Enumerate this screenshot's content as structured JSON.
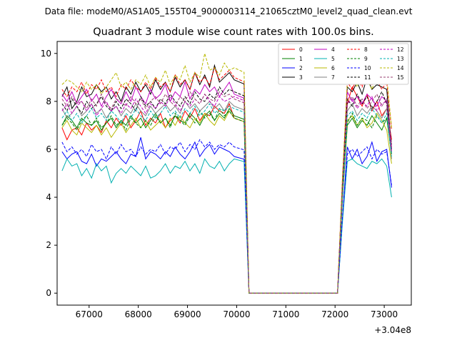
{
  "chart_data": {
    "type": "line",
    "suptitle": "Data file: modeM0/AS1A05_155T04_9000003114_21065cztM0_level2_quad_clean.evt",
    "title": "Quadrant 3 module wise count rates with 100.0s bins.",
    "xlabel": "",
    "ylabel": "",
    "x_offset_label": "+3.04e8",
    "xlim": [
      66350,
      73550
    ],
    "ylim": [
      -0.5,
      10.5
    ],
    "xticks": [
      67000,
      68000,
      69000,
      70000,
      71000,
      72000,
      73000
    ],
    "yticks": [
      0,
      2,
      4,
      6,
      8,
      10
    ],
    "xticklabels": [
      "67000",
      "68000",
      "69000",
      "70000",
      "71000",
      "72000",
      "73000"
    ],
    "yticklabels": [
      "0",
      "2",
      "4",
      "6",
      "8",
      "10"
    ],
    "legend_position": "top-right",
    "gap": {
      "start": 70150,
      "end": 72150,
      "start_ramp": 70250,
      "end_ramp": 72050,
      "floor": 0.0
    },
    "segment_x": {
      "seg1_start": 66450,
      "seg1_step": 100,
      "seg1_count": 36,
      "seg2_start": 72250,
      "seg2_step": 100,
      "seg2_count": 10
    },
    "series": [
      {
        "name": "0",
        "color": "#ff0000",
        "dash": "solid",
        "base": 7.2,
        "seg2base": 8.4,
        "values": [
          6.9,
          6.4,
          6.8,
          6.9,
          6.6,
          7.1,
          6.8,
          7.0,
          6.7,
          7.2,
          6.9,
          7.3,
          7.0,
          7.4,
          6.9,
          7.2,
          7.6,
          7.0,
          7.3,
          7.1,
          7.5,
          6.9,
          7.2,
          7.4,
          7.1,
          7.6,
          7.3,
          7.7,
          7.2,
          7.5,
          7.4,
          7.8,
          7.6,
          7.5,
          7.9,
          7.3
        ],
        "values2": [
          7.9,
          8.6,
          8.2,
          7.8,
          8.3,
          7.6,
          8.0,
          7.4,
          7.7,
          6.4
        ]
      },
      {
        "name": "1",
        "color": "#008000",
        "dash": "solid",
        "base": 7.2,
        "seg2base": 7.2,
        "values": [
          7.0,
          7.4,
          7.2,
          6.9,
          7.3,
          7.1,
          7.0,
          7.2,
          6.8,
          7.1,
          7.3,
          6.9,
          7.2,
          7.0,
          7.4,
          7.1,
          7.3,
          6.9,
          7.2,
          7.5,
          7.1,
          7.3,
          7.0,
          7.4,
          7.2,
          7.1,
          7.5,
          7.3,
          7.0,
          7.4,
          7.6,
          7.2,
          7.5,
          7.3,
          7.7,
          7.4
        ],
        "values2": [
          7.0,
          7.3,
          6.9,
          7.2,
          7.0,
          7.4,
          7.1,
          6.8,
          7.3,
          5.8
        ]
      },
      {
        "name": "2",
        "color": "#0000ff",
        "dash": "solid",
        "base": 5.6,
        "seg2base": 5.6,
        "values": [
          5.9,
          5.6,
          5.8,
          5.9,
          5.5,
          5.4,
          5.8,
          5.3,
          5.6,
          5.5,
          5.7,
          5.9,
          5.6,
          5.4,
          5.8,
          5.7,
          6.5,
          5.6,
          5.9,
          5.8,
          5.6,
          5.9,
          5.7,
          6.1,
          5.8,
          5.6,
          5.9,
          6.3,
          5.7,
          6.0,
          6.2,
          5.8,
          6.1,
          6.0,
          5.9,
          5.7
        ],
        "values2": [
          6.1,
          5.6,
          6.0,
          5.4,
          5.7,
          6.3,
          5.5,
          5.9,
          6.0,
          4.4
        ]
      },
      {
        "name": "3",
        "color": "#000000",
        "dash": "solid",
        "base": 8.2,
        "seg2base": 8.5,
        "values": [
          8.2,
          8.6,
          7.7,
          8.0,
          8.6,
          8.2,
          8.3,
          8.7,
          8.4,
          8.6,
          8.1,
          8.4,
          8.0,
          8.6,
          8.3,
          8.8,
          8.4,
          8.7,
          8.3,
          8.9,
          8.5,
          8.8,
          8.4,
          9.0,
          8.6,
          8.9,
          8.5,
          9.2,
          8.7,
          9.1,
          8.6,
          9.5,
          8.8,
          9.0,
          9.2,
          8.9
        ],
        "values2": [
          8.6,
          8.4,
          8.8,
          8.3,
          9.0,
          8.5,
          8.7,
          8.6,
          8.5,
          6.0
        ]
      },
      {
        "name": "4",
        "color": "#c000c0",
        "dash": "solid",
        "base": 8.0,
        "seg2base": 8.1,
        "values": [
          8.3,
          8.0,
          8.4,
          7.9,
          8.2,
          8.5,
          8.0,
          8.3,
          7.8,
          8.2,
          8.5,
          8.1,
          7.9,
          8.4,
          8.0,
          8.6,
          8.2,
          7.9,
          8.5,
          8.1,
          8.3,
          8.7,
          8.0,
          8.4,
          8.2,
          8.8,
          8.1,
          8.5,
          8.3,
          8.7,
          8.4,
          8.6,
          8.2,
          8.5,
          8.8,
          8.3
        ],
        "values2": [
          8.4,
          8.0,
          8.2,
          7.9,
          8.3,
          8.1,
          7.8,
          8.2,
          8.0,
          5.9
        ]
      },
      {
        "name": "5",
        "color": "#00b0b0",
        "dash": "solid",
        "base": 5.0,
        "seg2base": 5.4,
        "values": [
          5.1,
          5.6,
          5.3,
          5.4,
          4.9,
          5.2,
          4.8,
          5.4,
          5.1,
          5.3,
          4.6,
          5.0,
          5.2,
          5.0,
          5.3,
          5.1,
          4.9,
          5.3,
          4.8,
          4.9,
          5.1,
          5.4,
          5.0,
          5.3,
          5.2,
          5.5,
          5.1,
          5.4,
          5.0,
          5.6,
          5.3,
          5.2,
          5.5,
          5.1,
          5.4,
          5.6
        ],
        "values2": [
          5.5,
          5.6,
          5.4,
          5.3,
          5.2,
          5.5,
          5.4,
          5.6,
          5.3,
          4.0
        ]
      },
      {
        "name": "6",
        "color": "#b8b800",
        "dash": "solid",
        "base": 7.0,
        "seg2base": 7.3,
        "values": [
          6.9,
          7.2,
          6.8,
          6.6,
          7.1,
          6.9,
          6.7,
          7.0,
          6.6,
          6.9,
          6.5,
          6.8,
          7.1,
          6.7,
          7.0,
          7.3,
          6.9,
          7.2,
          6.8,
          7.0,
          7.2,
          6.9,
          7.3,
          7.0,
          7.4,
          7.1,
          6.9,
          7.3,
          7.1,
          7.5,
          7.2,
          7.0,
          7.4,
          7.2,
          7.6,
          7.3
        ],
        "values2": [
          7.2,
          7.4,
          7.0,
          7.3,
          6.9,
          7.1,
          7.5,
          7.2,
          6.8,
          5.4
        ]
      },
      {
        "name": "7",
        "color": "#808080",
        "dash": "solid",
        "base": 7.6,
        "seg2base": 7.6,
        "values": [
          7.7,
          7.3,
          7.5,
          7.8,
          7.4,
          7.6,
          7.9,
          7.5,
          7.7,
          7.3,
          7.6,
          7.8,
          7.4,
          7.7,
          7.5,
          7.9,
          7.6,
          7.4,
          7.8,
          7.5,
          7.7,
          7.9,
          7.6,
          7.8,
          7.5,
          8.0,
          7.7,
          7.9,
          7.6,
          7.8,
          8.0,
          7.7,
          7.9,
          7.6,
          8.0,
          7.8
        ],
        "values2": [
          7.6,
          7.9,
          7.4,
          7.7,
          7.5,
          7.8,
          7.6,
          7.3,
          7.7,
          5.6
        ]
      },
      {
        "name": "8",
        "color": "#ff0000",
        "dash": "dashed",
        "base": 8.3,
        "seg2base": 8.7,
        "values": [
          8.5,
          8.2,
          8.6,
          8.4,
          8.8,
          8.3,
          8.7,
          8.5,
          8.9,
          8.4,
          8.6,
          8.2,
          8.7,
          8.5,
          8.9,
          8.6,
          8.4,
          8.8,
          8.5,
          9.0,
          8.6,
          8.8,
          8.4,
          9.1,
          8.7,
          8.9,
          8.5,
          9.2,
          8.8,
          9.0,
          8.7,
          9.4,
          8.9,
          9.1,
          9.3,
          9.0
        ],
        "values2": [
          8.8,
          8.5,
          9.0,
          8.6,
          9.2,
          8.7,
          8.9,
          8.5,
          8.8,
          6.8
        ]
      },
      {
        "name": "9",
        "color": "#008000",
        "dash": "dashed",
        "base": 7.2,
        "seg2base": 7.3,
        "values": [
          7.0,
          7.3,
          7.1,
          6.8,
          7.2,
          7.4,
          7.0,
          7.3,
          6.9,
          7.1,
          7.4,
          7.0,
          7.2,
          6.8,
          7.3,
          7.1,
          6.9,
          7.2,
          7.0,
          7.4,
          7.1,
          7.3,
          6.9,
          7.5,
          7.2,
          7.0,
          7.4,
          7.1,
          7.6,
          7.3,
          7.5,
          7.2,
          7.7,
          7.4,
          7.6,
          7.3
        ],
        "values2": [
          7.1,
          7.5,
          7.0,
          7.3,
          7.2,
          6.9,
          7.4,
          7.1,
          7.3,
          5.8
        ]
      },
      {
        "name": "10",
        "color": "#0000ff",
        "dash": "dashed",
        "base": 5.9,
        "seg2base": 5.8,
        "values": [
          6.3,
          5.9,
          6.1,
          5.8,
          6.0,
          5.7,
          6.2,
          5.9,
          6.0,
          5.6,
          6.1,
          5.8,
          6.2,
          5.9,
          6.0,
          5.7,
          6.1,
          5.8,
          6.0,
          5.9,
          6.2,
          5.8,
          6.1,
          6.0,
          6.3,
          5.9,
          6.2,
          6.0,
          6.4,
          6.1,
          6.3,
          6.0,
          6.2,
          6.1,
          6.3,
          6.1
        ],
        "values2": [
          5.8,
          6.0,
          5.7,
          5.9,
          6.1,
          5.6,
          6.0,
          5.8,
          5.9,
          4.5
        ]
      },
      {
        "name": "11",
        "color": "#000000",
        "dash": "dashed",
        "base": 7.8,
        "seg2base": 8.0,
        "values": [
          7.9,
          7.6,
          8.1,
          7.8,
          7.5,
          8.0,
          7.7,
          7.9,
          8.2,
          7.8,
          7.6,
          8.0,
          7.7,
          8.1,
          7.9,
          7.6,
          8.2,
          7.8,
          8.0,
          7.7,
          8.1,
          7.9,
          8.3,
          8.0,
          7.8,
          8.2,
          7.9,
          8.4,
          8.1,
          8.0,
          8.3,
          8.1,
          8.6,
          8.3,
          8.5,
          8.4
        ],
        "values2": [
          8.1,
          7.8,
          8.3,
          7.9,
          8.2,
          7.7,
          8.0,
          8.4,
          7.9,
          6.2
        ]
      },
      {
        "name": "12",
        "color": "#c000c0",
        "dash": "dashed",
        "base": 7.7,
        "seg2base": 7.9,
        "values": [
          7.6,
          7.9,
          7.5,
          7.8,
          8.0,
          7.6,
          7.9,
          7.4,
          7.7,
          8.0,
          7.6,
          7.8,
          7.5,
          7.9,
          7.7,
          8.1,
          7.8,
          7.5,
          7.9,
          7.7,
          8.0,
          7.8,
          8.2,
          7.9,
          7.6,
          8.0,
          7.8,
          8.1,
          7.9,
          8.3,
          8.0,
          7.8,
          8.2,
          8.0,
          8.1,
          8.2
        ],
        "values2": [
          7.9,
          8.1,
          7.7,
          8.0,
          7.8,
          8.2,
          7.6,
          7.9,
          8.0,
          6.0
        ]
      },
      {
        "name": "13",
        "color": "#00b0b0",
        "dash": "dashed",
        "base": 7.4,
        "seg2base": 7.4,
        "values": [
          7.3,
          7.6,
          7.2,
          7.5,
          7.1,
          7.4,
          7.7,
          7.3,
          7.5,
          7.2,
          7.6,
          7.4,
          7.1,
          7.5,
          7.3,
          7.7,
          7.4,
          7.2,
          7.6,
          7.3,
          7.5,
          7.8,
          7.4,
          7.6,
          7.3,
          7.7,
          7.5,
          7.8,
          7.4,
          7.6,
          7.9,
          7.5,
          7.7,
          7.6,
          7.8,
          7.7
        ],
        "values2": [
          7.4,
          7.6,
          7.2,
          7.5,
          7.3,
          7.7,
          7.4,
          7.1,
          7.5,
          5.7
        ]
      },
      {
        "name": "14",
        "color": "#b8b800",
        "dash": "dashed",
        "base": 8.6,
        "seg2base": 8.8,
        "values": [
          8.7,
          8.9,
          8.8,
          8.6,
          8.4,
          8.8,
          8.5,
          8.7,
          8.3,
          8.6,
          8.9,
          9.2,
          8.6,
          8.8,
          8.5,
          8.9,
          8.7,
          9.1,
          8.6,
          9.0,
          8.8,
          9.3,
          8.7,
          9.1,
          8.9,
          9.5,
          8.8,
          9.2,
          9.0,
          10.0,
          9.3,
          9.4,
          9.1,
          9.6,
          9.3,
          9.4
        ],
        "values2": [
          8.8,
          9.0,
          8.6,
          9.3,
          8.9,
          8.5,
          9.1,
          8.7,
          9.0,
          6.9
        ]
      },
      {
        "name": "15",
        "color": "#9a4070",
        "dash": "dashed",
        "base": 7.9,
        "seg2base": 7.9,
        "values": [
          8.1,
          7.8,
          8.2,
          7.9,
          8.0,
          7.7,
          8.1,
          7.8,
          8.3,
          7.9,
          7.7,
          8.1,
          8.0,
          7.8,
          8.2,
          7.9,
          8.1,
          7.7,
          8.0,
          8.2,
          7.9,
          8.3,
          8.0,
          7.8,
          8.2,
          8.0,
          8.4,
          8.1,
          7.9,
          8.3,
          8.1,
          8.0,
          8.4,
          8.2,
          8.3,
          8.1
        ],
        "values2": [
          7.9,
          8.2,
          7.8,
          8.1,
          7.7,
          8.0,
          8.3,
          7.8,
          8.1,
          6.1
        ]
      }
    ]
  }
}
